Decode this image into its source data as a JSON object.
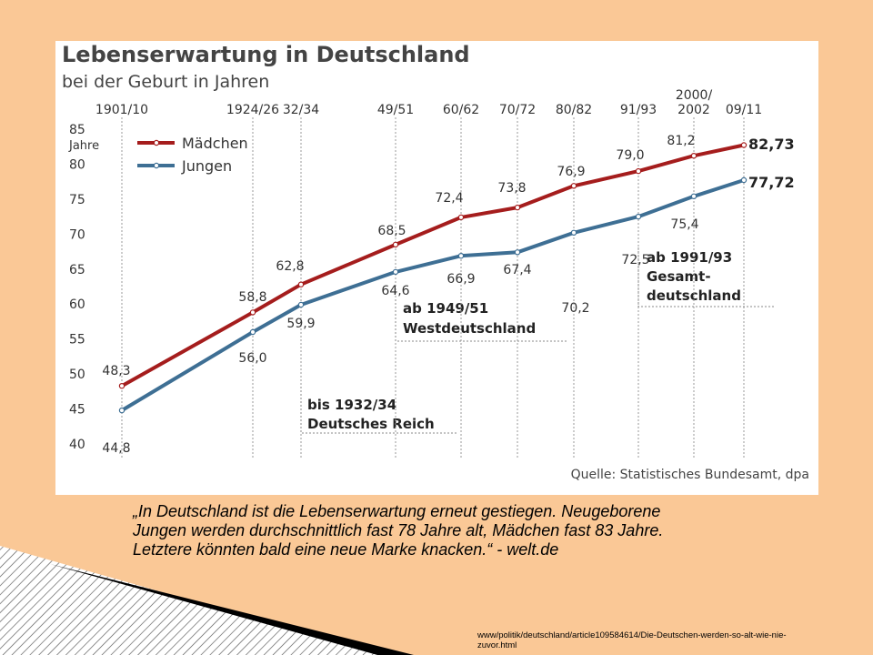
{
  "slide": {
    "quote": "„In Deutschland ist die Lebenserwartung erneut gestiegen. Neugeborene Jungen werden durchschnittlich fast 78 Jahre alt, Mädchen fast 83 Jahre. Letztere könnten bald eine neue Marke knacken.“ - welt.de",
    "source_url": "www/politik/deutschland/article109584614/Die-Deutschen-werden-so-alt-wie-nie-zuvor.html"
  },
  "chart": {
    "title": "Lebenserwartung in Deutschland",
    "subtitle": "bei der Geburt in Jahren",
    "y_unit": "Jahre",
    "source": "Quelle: Statistisches Bundesamt, dpa",
    "annotations": [
      {
        "line1": "bis 1932/34",
        "line2": "Deutsches Reich"
      },
      {
        "line1": "ab 1949/51",
        "line2": "Westdeutschland"
      },
      {
        "line1": "ab 1991/93",
        "line2": "Gesamt-",
        "line3": "deutschland"
      }
    ]
  },
  "chart_data": {
    "type": "line",
    "title": "Lebenserwartung in Deutschland",
    "subtitle": "bei der Geburt in Jahren",
    "ylabel": "Jahre",
    "ylim": [
      40,
      85
    ],
    "yticks": [
      40,
      45,
      50,
      55,
      60,
      65,
      70,
      75,
      80,
      85
    ],
    "categories": [
      "1901/10",
      "1924/26",
      "32/34",
      "49/51",
      "60/62",
      "70/72",
      "80/82",
      "91/93",
      "2000/2002",
      "09/11"
    ],
    "category_labels": [
      [
        "1901/10"
      ],
      [
        "1924/26"
      ],
      [
        "32/34"
      ],
      [
        "49/51"
      ],
      [
        "60/62"
      ],
      [
        "70/72"
      ],
      [
        "80/82"
      ],
      [
        "91/93"
      ],
      [
        "2000/",
        "2002"
      ],
      [
        "09/11"
      ]
    ],
    "series": [
      {
        "name": "Mädchen",
        "color": "#a51d1d",
        "values": [
          48.3,
          58.8,
          62.8,
          68.5,
          72.4,
          73.8,
          76.9,
          79.0,
          81.2,
          82.73
        ],
        "labels": [
          "48,3",
          "58,8",
          "62,8",
          "68,5",
          "72,4",
          "73,8",
          "76,9",
          "79,0",
          "81,2",
          "82,73"
        ]
      },
      {
        "name": "Jungen",
        "color": "#3e6f94",
        "values": [
          44.8,
          56.0,
          59.9,
          64.6,
          66.9,
          67.4,
          70.2,
          72.5,
          75.4,
          77.72
        ],
        "labels": [
          "44,8",
          "56,0",
          "59,9",
          "64,6",
          "66,9",
          "67,4",
          "70,2",
          "72,5",
          "75,4",
          "77,72"
        ]
      }
    ],
    "grid": false,
    "legend": "top-left"
  }
}
